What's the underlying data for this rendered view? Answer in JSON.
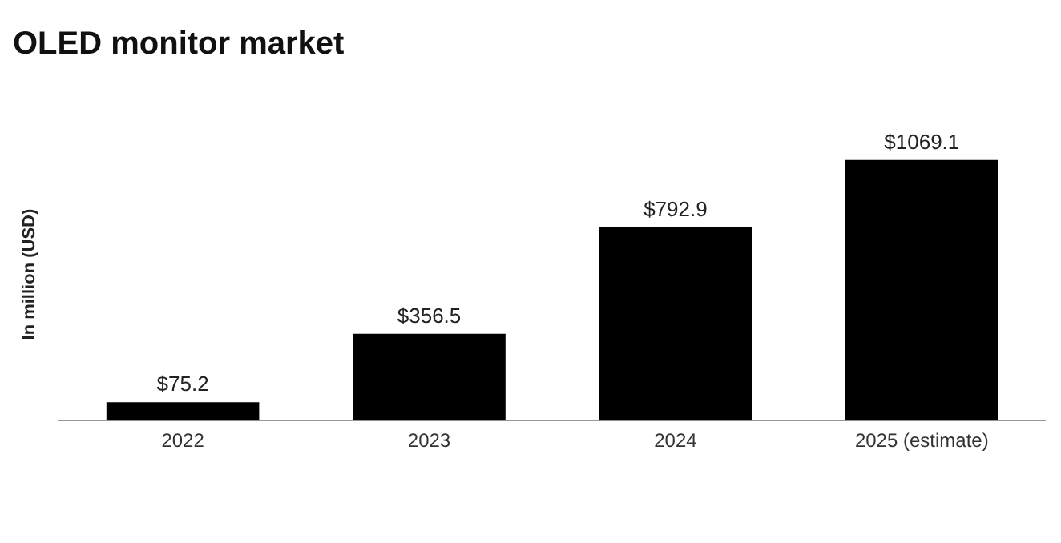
{
  "chart_data": {
    "type": "bar",
    "title": "OLED monitor market",
    "ylabel": "In million (USD)",
    "categories": [
      "2022",
      "2023",
      "2024",
      "2025 (estimate)"
    ],
    "values": [
      75.2,
      356.5,
      792.9,
      1069.1
    ],
    "value_labels": [
      "$75.2",
      "$356.5",
      "$792.9",
      "$1069.1"
    ],
    "color": "#000000",
    "grid": false,
    "tick_labels": "x"
  }
}
